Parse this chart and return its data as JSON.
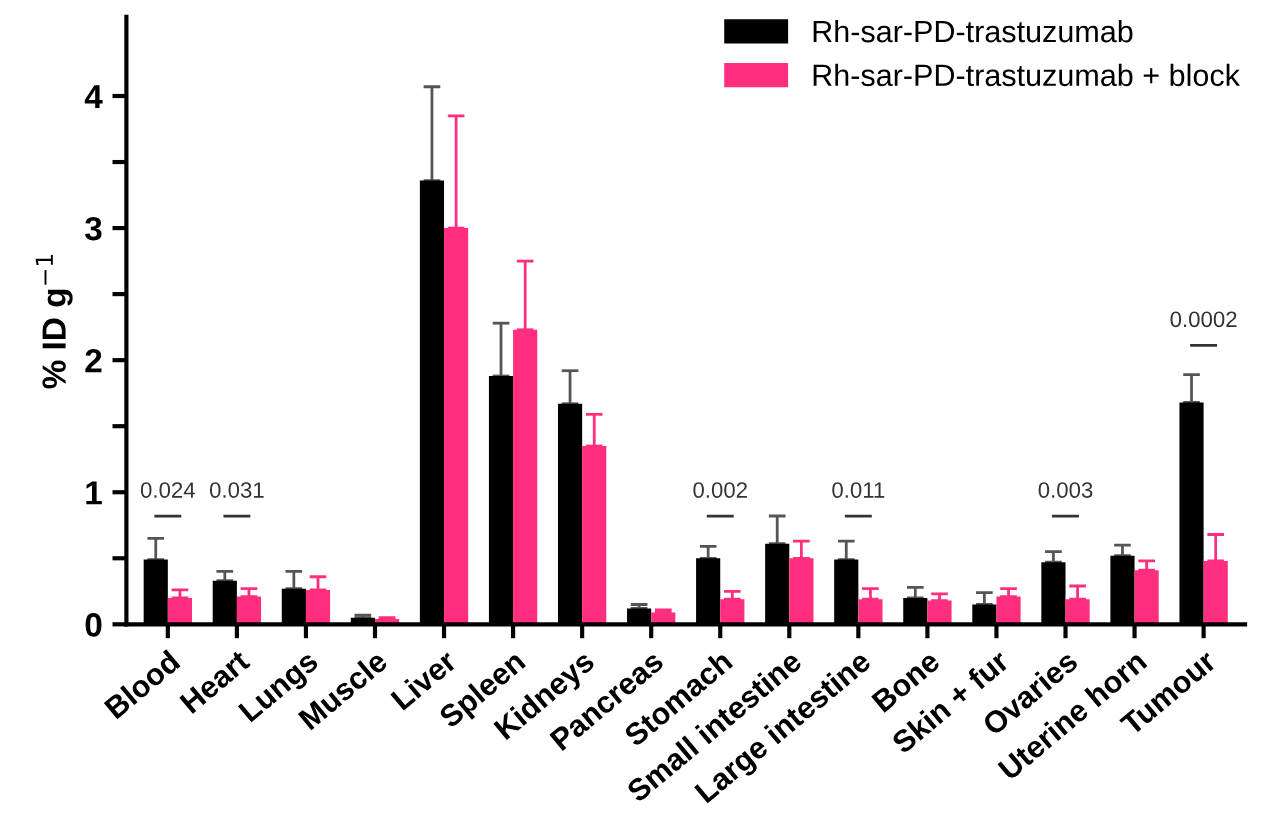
{
  "chart_data": {
    "type": "bar",
    "ylabel": "% ID g$^{−1}$",
    "categories": [
      "Blood",
      "Heart",
      "Lungs",
      "Muscle",
      "Liver",
      "Spleen",
      "Kidneys",
      "Pancreas",
      "Stomach",
      "Small intestine",
      "Large intestine",
      "Bone",
      "Skin + fur",
      "Ovaries",
      "Uterine horn",
      "Tumour"
    ],
    "series": [
      {
        "name": "Rh-sar-PD-trastuzumab",
        "color": "#000000",
        "values": [
          0.49,
          0.33,
          0.27,
          0.05,
          3.36,
          1.88,
          1.67,
          0.12,
          0.5,
          0.61,
          0.49,
          0.2,
          0.15,
          0.47,
          0.52,
          1.68
        ],
        "errors": [
          [
            0.49,
            0.65
          ],
          [
            0.33,
            0.4
          ],
          [
            0.27,
            0.4
          ],
          [
            0.05,
            0.07
          ],
          [
            3.36,
            4.07
          ],
          [
            1.88,
            2.28
          ],
          [
            1.67,
            1.92
          ],
          [
            0.12,
            0.15
          ],
          [
            0.5,
            0.59
          ],
          [
            0.61,
            0.82
          ],
          [
            0.49,
            0.63
          ],
          [
            0.2,
            0.28
          ],
          [
            0.15,
            0.24
          ],
          [
            0.47,
            0.55
          ],
          [
            0.52,
            0.6
          ],
          [
            1.68,
            1.89
          ]
        ]
      },
      {
        "name": "Rh-sar-PD-trastuzumab + block",
        "color": "#ff2e7e",
        "values": [
          0.2,
          0.21,
          0.26,
          0.04,
          3.0,
          2.23,
          1.35,
          0.09,
          0.19,
          0.5,
          0.19,
          0.18,
          0.21,
          0.19,
          0.41,
          0.48
        ],
        "errors": [
          [
            0.2,
            0.26
          ],
          [
            0.21,
            0.27
          ],
          [
            0.26,
            0.36
          ],
          [
            0.04,
            0.05
          ],
          [
            3.0,
            3.85
          ],
          [
            2.23,
            2.75
          ],
          [
            1.35,
            1.59
          ],
          [
            0.09,
            0.11
          ],
          [
            0.19,
            0.25
          ],
          [
            0.5,
            0.63
          ],
          [
            0.19,
            0.27
          ],
          [
            0.18,
            0.23
          ],
          [
            0.21,
            0.27
          ],
          [
            0.19,
            0.29
          ],
          [
            0.41,
            0.48
          ],
          [
            0.48,
            0.68
          ]
        ]
      }
    ],
    "annotations": [
      "0.024",
      "0.031",
      "0.002",
      "0.011",
      "0.003",
      "0.0002"
    ],
    "ylim": [
      0,
      4.6
    ],
    "yticks": [
      0,
      {
        "value": 0.5,
        "label": null
      },
      1,
      {
        "value": 1.5,
        "label": null
      },
      2,
      {
        "value": 2.5,
        "label": null
      },
      3,
      {
        "value": 3.5,
        "label": null
      },
      4
    ],
    "grid": false,
    "legend": "top right"
  }
}
